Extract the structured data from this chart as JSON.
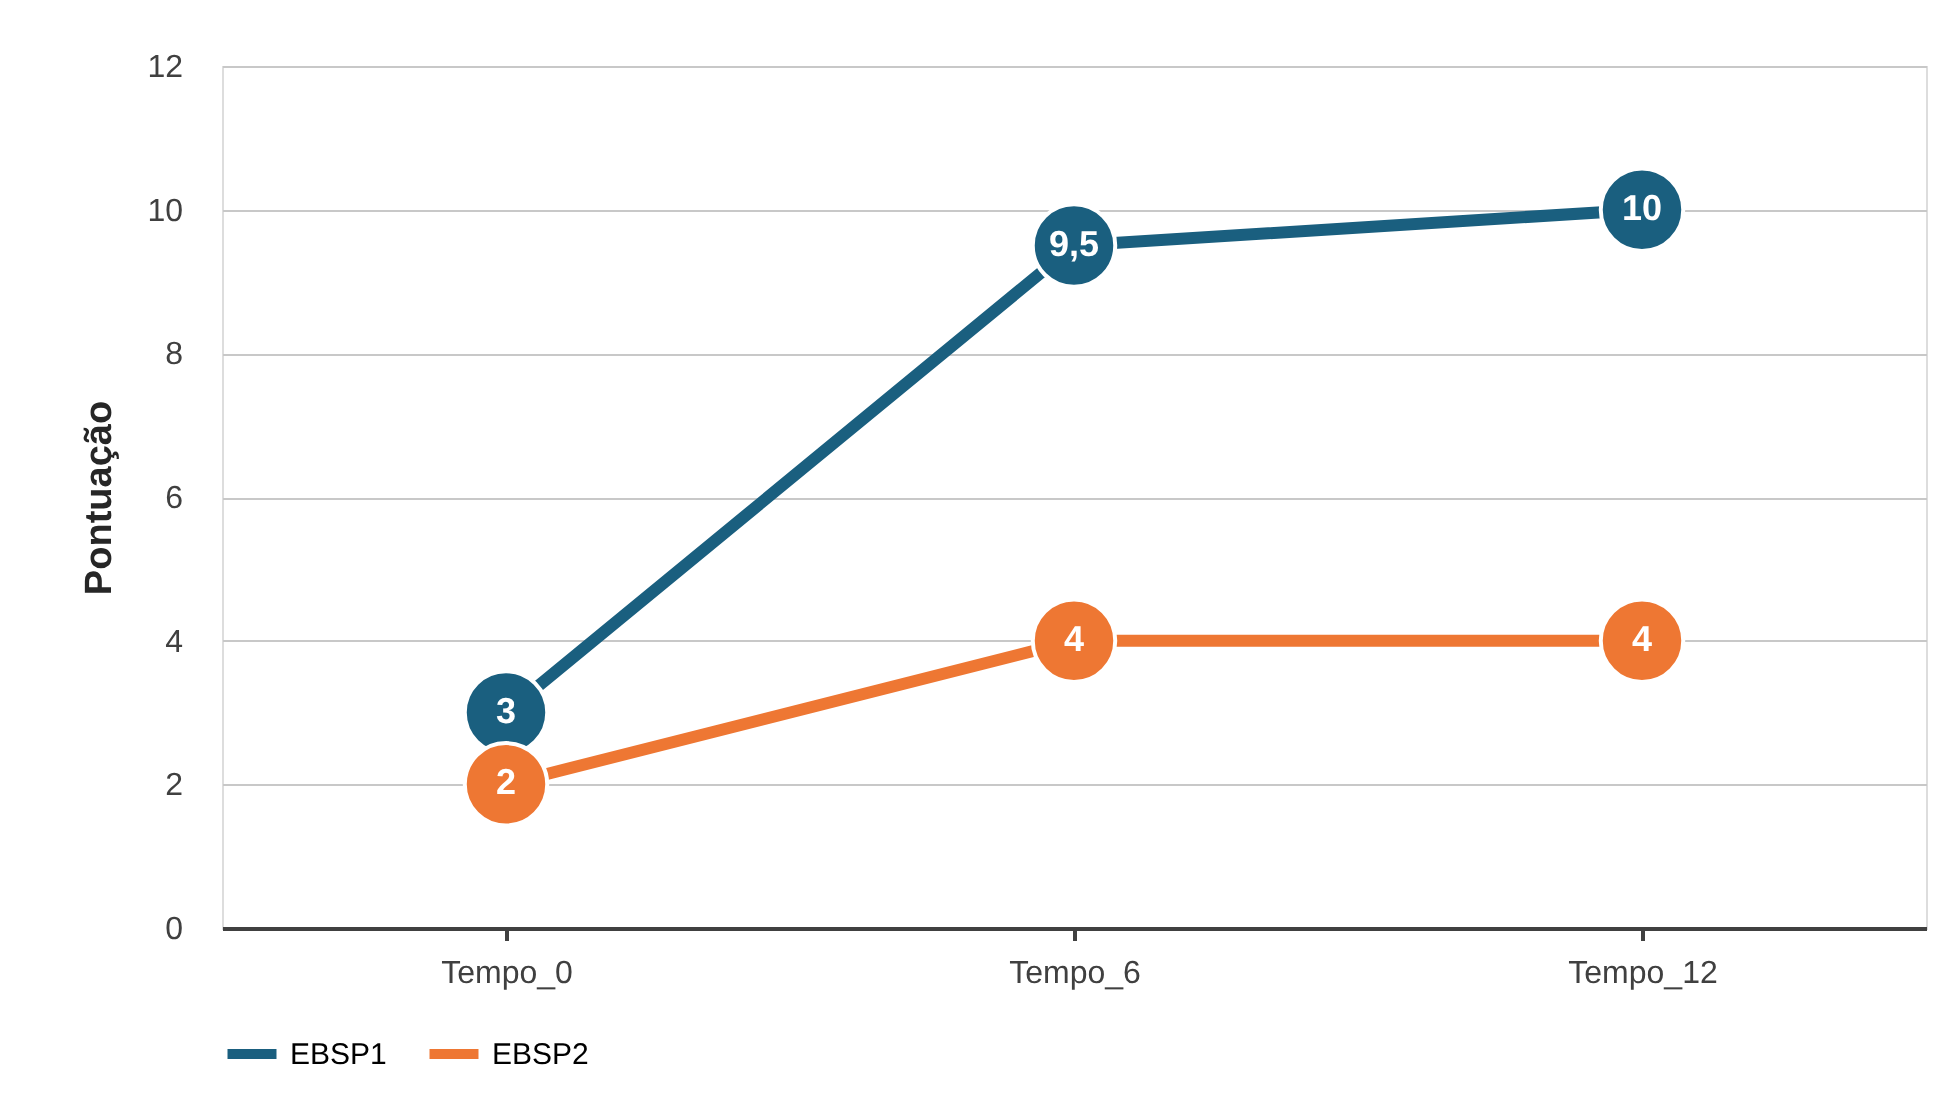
{
  "chart_data": {
    "type": "line",
    "ylabel": "Pontuação",
    "categories": [
      "Tempo_0",
      "Tempo_6",
      "Tempo_12"
    ],
    "series": [
      {
        "name": "EBSP1",
        "color": "#1a5f7f",
        "values": [
          3,
          9.5,
          10
        ],
        "value_labels": [
          "3",
          "9,5",
          "10"
        ]
      },
      {
        "name": "EBSP2",
        "color": "#ee7733",
        "values": [
          2,
          4,
          4
        ],
        "value_labels": [
          "2",
          "4",
          "4"
        ]
      }
    ],
    "ylim": [
      0,
      12
    ],
    "yticks": [
      0,
      2,
      4,
      6,
      8,
      10,
      12
    ],
    "grid": "y",
    "legend": "bottom",
    "marker": "circle",
    "line_style": "solid"
  }
}
